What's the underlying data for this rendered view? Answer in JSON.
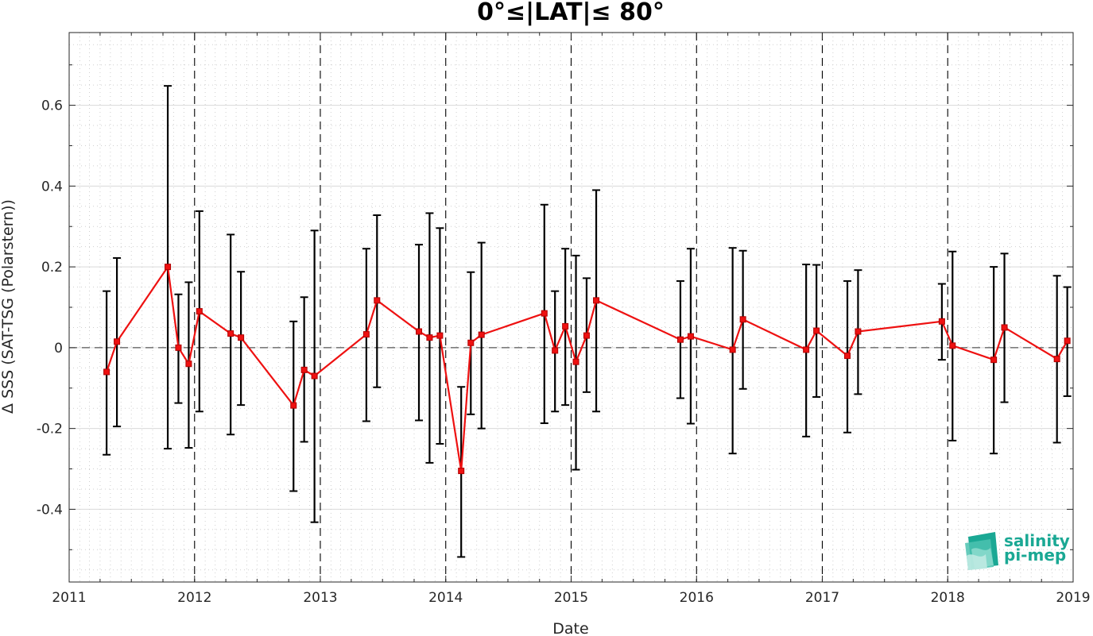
{
  "chart_data": {
    "type": "line",
    "title": "0°≤|LAT|≤ 80°",
    "xlabel": "Date",
    "ylabel": "Δ SSS (SAT-TSG (Polarstern))",
    "xlim": [
      "2011-01-01",
      "2019-01-01"
    ],
    "ylim": [
      -0.58,
      0.78
    ],
    "x_ticks": [
      "2011",
      "2012",
      "2013",
      "2014",
      "2015",
      "2016",
      "2017",
      "2018",
      "2019"
    ],
    "y_ticks": [
      -0.4,
      -0.2,
      0,
      0.2,
      0.4,
      0.6
    ],
    "y_tick_labels": [
      "-0.4",
      "-0.2",
      "0",
      "0.2",
      "0.4",
      "0.6"
    ],
    "grid": "dotted minor grid on",
    "year_lines": "dashed vertical lines at each January 1",
    "zero_line": "dashed horizontal line at 0",
    "line_color": "#ee1111",
    "errorbar_color": "#000000",
    "marker": "square",
    "series": [
      {
        "x": [
          "2011-04-20",
          "2011-05-20",
          "2011-10-15",
          "2011-11-15",
          "2011-12-15",
          "2012-01-15",
          "2012-04-15",
          "2012-05-15",
          "2012-10-15",
          "2012-11-15",
          "2012-12-15",
          "2013-05-15",
          "2013-06-15",
          "2013-10-15",
          "2013-11-15",
          "2013-12-15",
          "2014-02-15",
          "2014-03-15",
          "2014-04-15",
          "2014-10-15",
          "2014-11-15",
          "2014-12-15",
          "2015-01-15",
          "2015-02-15",
          "2015-03-15",
          "2015-11-15",
          "2015-12-15",
          "2016-04-15",
          "2016-05-15",
          "2016-11-15",
          "2016-12-15",
          "2017-03-15",
          "2017-04-15",
          "2017-12-15",
          "2018-01-15",
          "2018-05-15",
          "2018-06-15",
          "2018-11-15",
          "2018-12-15"
        ],
        "values": [
          -0.06,
          0.015,
          0.2,
          0.0,
          -0.04,
          0.09,
          0.035,
          0.025,
          -0.143,
          -0.055,
          -0.07,
          0.033,
          0.117,
          0.04,
          0.025,
          0.03,
          -0.305,
          0.012,
          0.032,
          0.085,
          -0.007,
          0.053,
          -0.035,
          0.03,
          0.117,
          0.02,
          0.028,
          -0.005,
          0.07,
          -0.005,
          0.042,
          -0.02,
          0.04,
          0.065,
          0.005,
          -0.03,
          0.05,
          -0.028,
          0.017
        ],
        "err_low": [
          -0.265,
          -0.195,
          -0.25,
          -0.137,
          -0.248,
          -0.158,
          -0.215,
          -0.142,
          -0.355,
          -0.233,
          -0.432,
          -0.182,
          -0.098,
          -0.18,
          -0.285,
          -0.238,
          -0.518,
          -0.165,
          -0.2,
          -0.187,
          -0.158,
          -0.142,
          -0.302,
          -0.11,
          -0.158,
          -0.125,
          -0.188,
          -0.262,
          -0.102,
          -0.22,
          -0.122,
          -0.21,
          -0.115,
          -0.03,
          -0.23,
          -0.262,
          -0.135,
          -0.235,
          -0.12
        ],
        "err_high": [
          0.14,
          0.222,
          0.648,
          0.132,
          0.162,
          0.338,
          0.28,
          0.188,
          0.065,
          0.125,
          0.29,
          0.245,
          0.328,
          0.255,
          0.333,
          0.296,
          -0.097,
          0.187,
          0.26,
          0.354,
          0.14,
          0.245,
          0.228,
          0.172,
          0.39,
          0.165,
          0.245,
          0.247,
          0.24,
          0.206,
          0.205,
          0.165,
          0.192,
          0.158,
          0.238,
          0.2,
          0.233,
          0.178,
          0.15
        ]
      }
    ]
  },
  "logo": {
    "line1": "salinity",
    "line2": "pi-mep",
    "color": "#1aa894"
  }
}
